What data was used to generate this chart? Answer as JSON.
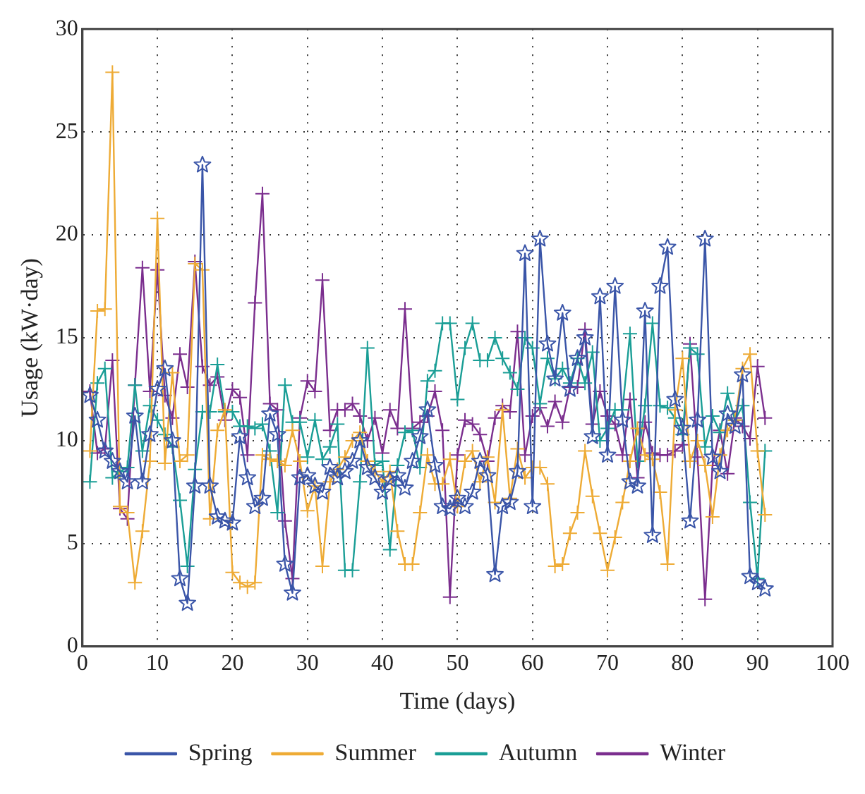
{
  "chart_data": {
    "type": "line",
    "xlabel": "Time (days)",
    "ylabel": "Usage (kW·day)",
    "x": [
      1,
      2,
      3,
      4,
      5,
      6,
      7,
      8,
      9,
      10,
      11,
      12,
      13,
      14,
      15,
      16,
      17,
      18,
      19,
      20,
      21,
      22,
      23,
      24,
      25,
      26,
      27,
      28,
      29,
      30,
      31,
      32,
      33,
      34,
      35,
      36,
      37,
      38,
      39,
      40,
      41,
      42,
      43,
      44,
      45,
      46,
      47,
      48,
      49,
      50,
      51,
      52,
      53,
      54,
      55,
      56,
      57,
      58,
      59,
      60,
      61,
      62,
      63,
      64,
      65,
      66,
      67,
      68,
      69,
      70,
      71,
      72,
      73,
      74,
      75,
      76,
      77,
      78,
      79,
      80,
      81,
      82,
      83,
      84,
      85,
      86,
      87,
      88,
      89,
      90,
      91
    ],
    "series": [
      {
        "name": "Spring",
        "color": "#3a55a8",
        "marker": "star",
        "values": [
          12.2,
          11,
          9.5,
          9,
          8.5,
          8,
          11.2,
          8,
          10.3,
          12.5,
          13.5,
          10,
          3.3,
          2.1,
          7.8,
          23.4,
          7.8,
          6.3,
          6.1,
          6,
          10.2,
          8.2,
          6.8,
          7.2,
          11.3,
          10.3,
          4,
          2.6,
          8.2,
          8.3,
          7.8,
          7.5,
          8.7,
          8.2,
          8.5,
          9,
          10,
          8.7,
          8.2,
          7.5,
          8.1,
          8.3,
          7.7,
          9,
          10.2,
          11.5,
          8.8,
          6.8,
          6.7,
          7.2,
          6.8,
          7.5,
          9,
          8.3,
          3.5,
          6.8,
          7,
          8.5,
          19.1,
          6.8,
          19.8,
          14.7,
          13,
          16.2,
          12.5,
          14,
          15,
          10.2,
          17,
          9.3,
          17.5,
          11,
          8,
          7.8,
          16.3,
          5.4,
          17.5,
          19.4,
          12,
          10.6,
          6.1,
          11,
          19.8,
          9.2,
          8.5,
          11.3,
          10.7,
          13.2,
          3.4,
          3.1,
          2.8
        ]
      },
      {
        "name": "Summer",
        "color": "#eeab35",
        "marker": "cross",
        "values": [
          9.5,
          16.3,
          16.4,
          27.9,
          6.8,
          6.5,
          3.1,
          5.6,
          9,
          20.8,
          8.9,
          13.3,
          9,
          9.3,
          18.6,
          18.3,
          6.2,
          10.5,
          11.5,
          3.6,
          3.1,
          2.9,
          3.1,
          9.3,
          9.1,
          9,
          8.8,
          10.5,
          9,
          6.6,
          7.8,
          3.9,
          8,
          8.6,
          9.2,
          10,
          10.4,
          9,
          8.5,
          8,
          8.5,
          5.6,
          4,
          4,
          6.5,
          9.3,
          7.9,
          7.9,
          9.1,
          6.8,
          9,
          9.5,
          8,
          9.2,
          7,
          11.5,
          7.2,
          9.6,
          8.2,
          8.7,
          8.7,
          7.9,
          3.9,
          4,
          5.5,
          6.5,
          9.5,
          7.3,
          5.5,
          3.7,
          5.3,
          7,
          9,
          10.6,
          9.3,
          9.1,
          7.5,
          4,
          11.5,
          14,
          9,
          10,
          8.8,
          6.3,
          9.3,
          10.5,
          11,
          13.5,
          14.2,
          9.5,
          6.4
        ]
      },
      {
        "name": "Autumn",
        "color": "#1a9e96",
        "marker": "cross",
        "values": [
          8,
          12.8,
          13.5,
          8.2,
          8.5,
          8.7,
          12.7,
          9.5,
          11.7,
          11,
          10.3,
          9.7,
          7.1,
          3.9,
          8.6,
          11.4,
          11.4,
          13.7,
          11.4,
          11.4,
          10.7,
          10.7,
          10.6,
          10.8,
          9.5,
          6.5,
          12.7,
          10.9,
          10.9,
          9.2,
          11,
          9.1,
          9.7,
          10.8,
          3.7,
          3.7,
          8,
          14.5,
          8.8,
          9,
          4.7,
          8.8,
          10.4,
          10.5,
          8.7,
          12.9,
          13.4,
          15.7,
          15.7,
          12,
          14.5,
          15.7,
          13.9,
          13.9,
          15,
          14,
          13.3,
          12.5,
          15,
          14.5,
          11.8,
          14,
          13,
          13.5,
          12.8,
          14,
          12.8,
          14.3,
          10,
          10.6,
          11.5,
          11.5,
          15.2,
          9,
          11.7,
          15.7,
          11.7,
          11.6,
          11.1,
          10.3,
          14.5,
          14.2,
          9.7,
          11.2,
          10.4,
          12.3,
          11,
          11.7,
          7,
          3.3,
          9.5
        ]
      },
      {
        "name": "Winter",
        "color": "#7b2e8e",
        "marker": "cross",
        "values": [
          12.4,
          9.4,
          9.6,
          13.9,
          6.7,
          6.2,
          12.7,
          18.4,
          12.4,
          18.3,
          12.2,
          11.1,
          14.2,
          12.6,
          18.7,
          13.6,
          12.7,
          13.1,
          11,
          12.5,
          12.1,
          9.3,
          16.7,
          22,
          11.8,
          11.5,
          6.1,
          3.3,
          11.1,
          12.9,
          12.4,
          17.8,
          10.5,
          11.5,
          11.5,
          11.8,
          11.2,
          10,
          11.1,
          9.4,
          11.5,
          10.6,
          16.4,
          10.6,
          10.9,
          11.2,
          12.4,
          10.5,
          2.4,
          9.3,
          11,
          10.8,
          10.3,
          9,
          11.1,
          11.7,
          11.4,
          15.3,
          9.3,
          11.2,
          11.6,
          10.7,
          11.9,
          10.9,
          12.6,
          12.6,
          15.4,
          10.8,
          12.4,
          11.2,
          10.8,
          9.3,
          12,
          8.2,
          10.9,
          9.4,
          9.3,
          9.3,
          9.5,
          9.8,
          14.7,
          9.2,
          2.3,
          8.8,
          10.5,
          8.4,
          11.1,
          10.7,
          10.1,
          13.6,
          11.1
        ]
      }
    ],
    "xlim": [
      0,
      100
    ],
    "xticks": [
      0,
      10,
      20,
      30,
      40,
      50,
      60,
      70,
      80,
      90,
      100
    ],
    "ylim": [
      0,
      30
    ],
    "yticks": [
      0,
      5,
      10,
      15,
      20,
      25,
      30
    ],
    "grid": true,
    "legend": "bottom",
    "line_style": "solid"
  }
}
